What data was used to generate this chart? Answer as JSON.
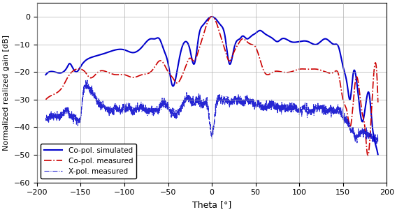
{
  "title": "",
  "xlabel": "Theta [°]",
  "ylabel": "Normalized realized gain [dB]",
  "xlim": [
    -200,
    200
  ],
  "ylim": [
    -60,
    5
  ],
  "yticks": [
    0,
    -10,
    -20,
    -30,
    -40,
    -50,
    -60
  ],
  "xticks": [
    -200,
    -150,
    -100,
    -50,
    0,
    50,
    100,
    150,
    200
  ],
  "grid_color": "#b0b0b0",
  "bg_color": "#ffffff",
  "copol_sim_color": "#0000cc",
  "copol_meas_color": "#cc0000",
  "xpol_meas_color": "#0000cc",
  "legend_labels": [
    "Co-pol. simulated",
    "Co-pol. measured",
    "X-pol. measured"
  ]
}
